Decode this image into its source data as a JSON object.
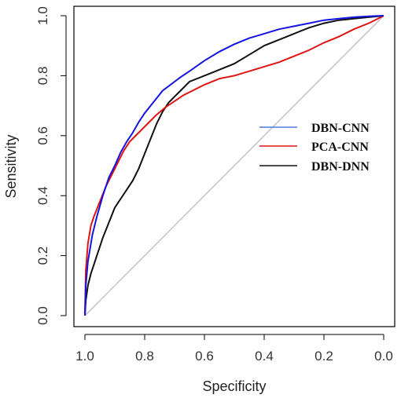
{
  "chart_data": {
    "type": "line",
    "xlabel": "Specificity",
    "ylabel": "Sensitivity",
    "x_reversed": true,
    "xlim": [
      1.0,
      0.0
    ],
    "ylim": [
      0.0,
      1.0
    ],
    "x_ticks": [
      "1.0",
      "0.8",
      "0.6",
      "0.4",
      "0.2",
      "0.0"
    ],
    "y_ticks": [
      "0.0",
      "0.2",
      "0.4",
      "0.6",
      "0.8",
      "1.0"
    ],
    "grid": false,
    "legend_position": "right",
    "reference_line": {
      "from": [
        1.0,
        0.0
      ],
      "to": [
        0.0,
        1.0
      ],
      "color": "#bdbdbd"
    },
    "series": [
      {
        "name": "DBN-CNN",
        "color": "#1414e0",
        "legend_color": "#4a7fd4",
        "points": [
          [
            1.0,
            0.0
          ],
          [
            0.997,
            0.1
          ],
          [
            0.99,
            0.18
          ],
          [
            0.975,
            0.27
          ],
          [
            0.96,
            0.33
          ],
          [
            0.94,
            0.4
          ],
          [
            0.92,
            0.46
          ],
          [
            0.9,
            0.5
          ],
          [
            0.88,
            0.545
          ],
          [
            0.86,
            0.58
          ],
          [
            0.84,
            0.61
          ],
          [
            0.82,
            0.645
          ],
          [
            0.8,
            0.675
          ],
          [
            0.78,
            0.7
          ],
          [
            0.76,
            0.725
          ],
          [
            0.74,
            0.75
          ],
          [
            0.72,
            0.765
          ],
          [
            0.7,
            0.78
          ],
          [
            0.68,
            0.795
          ],
          [
            0.65,
            0.815
          ],
          [
            0.6,
            0.85
          ],
          [
            0.55,
            0.88
          ],
          [
            0.5,
            0.905
          ],
          [
            0.45,
            0.925
          ],
          [
            0.4,
            0.94
          ],
          [
            0.35,
            0.955
          ],
          [
            0.3,
            0.965
          ],
          [
            0.25,
            0.975
          ],
          [
            0.2,
            0.985
          ],
          [
            0.15,
            0.99
          ],
          [
            0.1,
            0.995
          ],
          [
            0.05,
            0.998
          ],
          [
            0.0,
            1.0
          ]
        ]
      },
      {
        "name": "PCA-CNN",
        "color": "#e01414",
        "legend_color": "#e01414",
        "points": [
          [
            1.0,
            0.0
          ],
          [
            0.997,
            0.15
          ],
          [
            0.99,
            0.24
          ],
          [
            0.98,
            0.3
          ],
          [
            0.97,
            0.33
          ],
          [
            0.95,
            0.38
          ],
          [
            0.93,
            0.43
          ],
          [
            0.91,
            0.47
          ],
          [
            0.89,
            0.51
          ],
          [
            0.87,
            0.55
          ],
          [
            0.85,
            0.58
          ],
          [
            0.82,
            0.61
          ],
          [
            0.79,
            0.64
          ],
          [
            0.76,
            0.67
          ],
          [
            0.73,
            0.695
          ],
          [
            0.7,
            0.715
          ],
          [
            0.67,
            0.735
          ],
          [
            0.64,
            0.75
          ],
          [
            0.6,
            0.77
          ],
          [
            0.55,
            0.79
          ],
          [
            0.5,
            0.8
          ],
          [
            0.45,
            0.815
          ],
          [
            0.4,
            0.83
          ],
          [
            0.35,
            0.845
          ],
          [
            0.3,
            0.865
          ],
          [
            0.25,
            0.885
          ],
          [
            0.2,
            0.91
          ],
          [
            0.15,
            0.93
          ],
          [
            0.1,
            0.955
          ],
          [
            0.05,
            0.975
          ],
          [
            0.0,
            1.0
          ]
        ]
      },
      {
        "name": "DBN-DNN",
        "color": "#111111",
        "legend_color": "#111111",
        "points": [
          [
            1.0,
            0.0
          ],
          [
            0.997,
            0.05
          ],
          [
            0.99,
            0.1
          ],
          [
            0.98,
            0.14
          ],
          [
            0.96,
            0.2
          ],
          [
            0.94,
            0.26
          ],
          [
            0.92,
            0.31
          ],
          [
            0.9,
            0.36
          ],
          [
            0.88,
            0.39
          ],
          [
            0.86,
            0.42
          ],
          [
            0.84,
            0.45
          ],
          [
            0.82,
            0.49
          ],
          [
            0.8,
            0.54
          ],
          [
            0.78,
            0.59
          ],
          [
            0.76,
            0.64
          ],
          [
            0.74,
            0.68
          ],
          [
            0.72,
            0.71
          ],
          [
            0.7,
            0.73
          ],
          [
            0.68,
            0.75
          ],
          [
            0.65,
            0.78
          ],
          [
            0.6,
            0.8
          ],
          [
            0.55,
            0.82
          ],
          [
            0.5,
            0.84
          ],
          [
            0.45,
            0.87
          ],
          [
            0.4,
            0.9
          ],
          [
            0.35,
            0.92
          ],
          [
            0.3,
            0.94
          ],
          [
            0.25,
            0.96
          ],
          [
            0.2,
            0.975
          ],
          [
            0.15,
            0.985
          ],
          [
            0.1,
            0.99
          ],
          [
            0.05,
            0.995
          ],
          [
            0.0,
            1.0
          ]
        ]
      }
    ]
  }
}
